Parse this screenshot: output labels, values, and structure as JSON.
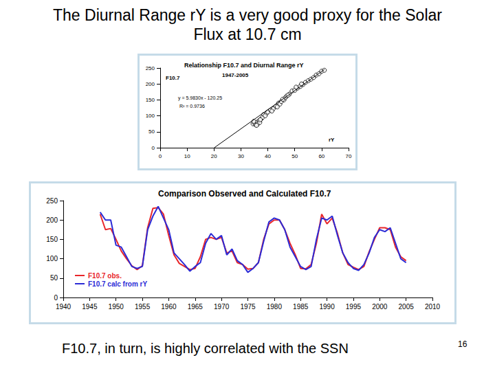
{
  "title": "The Diurnal Range rY is a very good proxy for the Solar Flux at 10.7 cm",
  "footer": "F10.7, in turn, is highly correlated with the SSN",
  "page_number": 16,
  "chart_data": [
    {
      "type": "scatter",
      "title": "Relationship F10.7 and Diurnal Range rY",
      "xlabel": "rY",
      "ylabel": "F10.7",
      "annotations": [
        "1947-2005",
        "y = 5.9830x - 120.25",
        "R² = 0.9736"
      ],
      "xlim": [
        0,
        70
      ],
      "xticks": [
        0,
        10,
        20,
        30,
        40,
        50,
        60,
        70
      ],
      "ylim": [
        0,
        250
      ],
      "yticks": [
        0,
        50,
        100,
        150,
        200,
        250
      ],
      "grid": false,
      "series": [
        {
          "type": "scatter",
          "marker": "hollow_circle",
          "color": "#000000",
          "x": [
            34.5,
            35,
            35.5,
            36,
            36.2,
            36.8,
            37,
            35.8,
            34.8,
            37.5,
            38,
            38.5,
            39.5,
            40,
            41,
            42,
            43,
            44,
            44.5,
            45,
            46,
            46.5,
            47,
            48,
            49,
            50,
            51,
            52,
            53,
            54,
            55,
            56,
            57,
            58,
            59,
            60,
            61,
            37.2,
            39,
            41.5,
            43.5,
            45.5,
            47.5,
            50.5,
            52.5
          ],
          "values": [
            75,
            78,
            72,
            80,
            74,
            85,
            79,
            70,
            83,
            90,
            95,
            104,
            108,
            112,
            118,
            122,
            130,
            140,
            137,
            145,
            150,
            157,
            162,
            168,
            178,
            180,
            187,
            192,
            198,
            205,
            210,
            215,
            220,
            228,
            232,
            240,
            243,
            88,
            100,
            115,
            128,
            152,
            165,
            190,
            200
          ]
        },
        {
          "type": "line",
          "color": "#000000",
          "line_style": "solid",
          "x": [
            20.1,
            61
          ],
          "values": [
            0,
            245
          ]
        }
      ]
    },
    {
      "type": "line",
      "title": "Comparison Observed and Calculated F10.7",
      "xlim": [
        1940,
        2010
      ],
      "xticks": [
        1940,
        1945,
        1950,
        1955,
        1960,
        1965,
        1970,
        1975,
        1980,
        1985,
        1990,
        1995,
        2000,
        2005,
        2010
      ],
      "ylim": [
        0,
        250
      ],
      "yticks": [
        0,
        50,
        100,
        150,
        200,
        250
      ],
      "grid": false,
      "legend": "lower left",
      "x": [
        1947,
        1948,
        1949,
        1950,
        1951,
        1952,
        1953,
        1954,
        1955,
        1956,
        1957,
        1958,
        1959,
        1960,
        1961,
        1962,
        1963,
        1964,
        1965,
        1966,
        1967,
        1968,
        1969,
        1970,
        1971,
        1972,
        1973,
        1974,
        1975,
        1976,
        1977,
        1978,
        1979,
        1980,
        1981,
        1982,
        1983,
        1984,
        1985,
        1986,
        1987,
        1988,
        1989,
        1990,
        1991,
        1992,
        1993,
        1994,
        1995,
        1996,
        1997,
        1998,
        1999,
        2000,
        2001,
        2002,
        2003,
        2004,
        2005
      ],
      "series": [
        {
          "name": "F10.7 obs.",
          "color": "#e8262a",
          "values": [
            215,
            175,
            178,
            150,
            120,
            100,
            82,
            72,
            82,
            180,
            230,
            232,
            215,
            160,
            110,
            88,
            80,
            72,
            75,
            105,
            150,
            155,
            150,
            155,
            115,
            120,
            90,
            85,
            73,
            75,
            90,
            150,
            190,
            200,
            200,
            175,
            140,
            110,
            75,
            74,
            85,
            140,
            215,
            190,
            205,
            165,
            115,
            85,
            78,
            72,
            80,
            118,
            150,
            180,
            180,
            175,
            130,
            105,
            95
          ]
        },
        {
          "name": "F10.7 calc from rY",
          "color": "#2b2bd6",
          "values": [
            220,
            200,
            200,
            135,
            130,
            105,
            80,
            75,
            80,
            175,
            210,
            235,
            205,
            175,
            115,
            100,
            85,
            68,
            80,
            90,
            140,
            165,
            150,
            160,
            110,
            125,
            95,
            85,
            65,
            75,
            90,
            145,
            195,
            205,
            200,
            175,
            130,
            105,
            80,
            72,
            80,
            150,
            205,
            200,
            210,
            160,
            115,
            90,
            75,
            70,
            85,
            115,
            155,
            175,
            170,
            180,
            140,
            100,
            90
          ]
        }
      ]
    }
  ]
}
